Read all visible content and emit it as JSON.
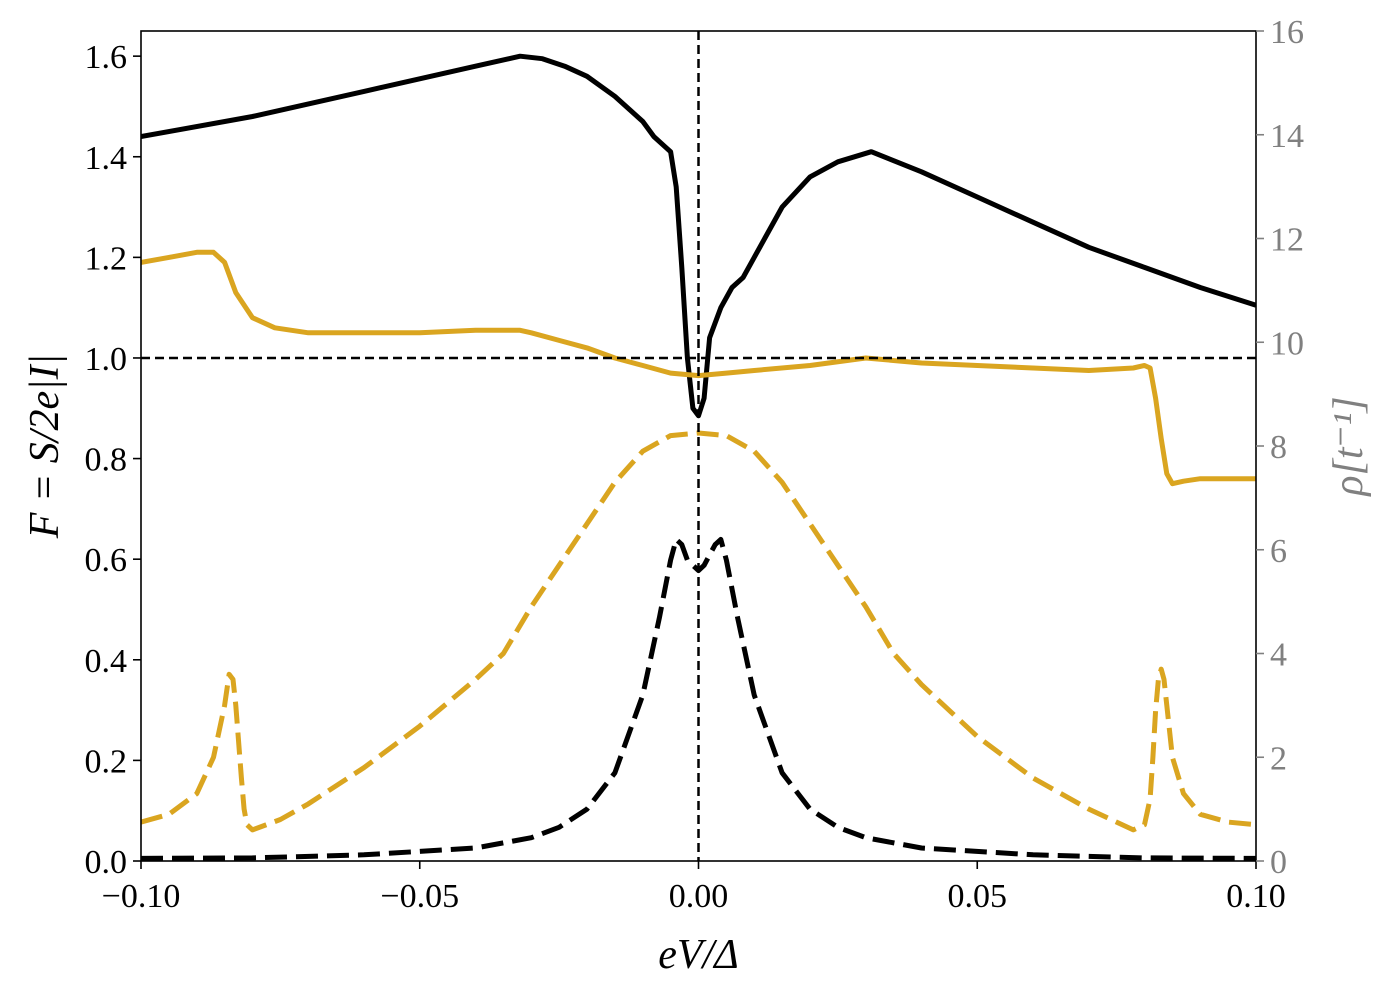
{
  "chart_data": {
    "type": "line",
    "xlabel": "eV/Δ",
    "ylabel_left": "F = S/2e|I|",
    "ylabel_right": "ρ[t⁻¹]",
    "xlim": [
      -0.1,
      0.1
    ],
    "ylim_left": [
      0.0,
      1.65
    ],
    "ylim_right": [
      0,
      16
    ],
    "xticks": [
      -0.1,
      -0.05,
      0.0,
      0.05,
      0.1
    ],
    "xtick_labels": [
      "−0.10",
      "−0.05",
      "0.00",
      "0.05",
      "0.10"
    ],
    "yticks_left": [
      0.0,
      0.2,
      0.4,
      0.6,
      0.8,
      1.0,
      1.2,
      1.4,
      1.6
    ],
    "ytick_labels_left": [
      "0.0",
      "0.2",
      "0.4",
      "0.6",
      "0.8",
      "1.0",
      "1.2",
      "1.4",
      "1.6"
    ],
    "yticks_right": [
      0,
      2,
      4,
      6,
      8,
      10,
      12,
      14,
      16
    ],
    "ytick_labels_right": [
      "0",
      "2",
      "4",
      "6",
      "8",
      "10",
      "12",
      "14",
      "16"
    ],
    "grid": false,
    "reference_lines": [
      {
        "orientation": "horizontal",
        "axis": "left",
        "value": 1.0,
        "style": "dashed",
        "color": "#000000"
      },
      {
        "orientation": "vertical",
        "value": 0.0,
        "style": "dashed",
        "color": "#000000"
      }
    ],
    "colors": {
      "black": "#000000",
      "gold": "#DAA520",
      "right_axis": "#808080"
    },
    "series": [
      {
        "axis": "left",
        "color": "#000000",
        "style": "solid",
        "x": [
          -0.1,
          -0.08,
          -0.06,
          -0.04,
          -0.032,
          -0.028,
          -0.024,
          -0.02,
          -0.015,
          -0.01,
          -0.008,
          -0.006,
          -0.005,
          -0.004,
          -0.003,
          -0.002,
          -0.001,
          0.0,
          0.001,
          0.002,
          0.003,
          0.004,
          0.006,
          0.008,
          0.01,
          0.015,
          0.02,
          0.025,
          0.031,
          0.04,
          0.05,
          0.06,
          0.07,
          0.08,
          0.09,
          0.1
        ],
        "y": [
          1.44,
          1.48,
          1.53,
          1.58,
          1.6,
          1.595,
          1.58,
          1.56,
          1.52,
          1.47,
          1.44,
          1.42,
          1.41,
          1.34,
          1.18,
          1.0,
          0.9,
          0.885,
          0.92,
          1.04,
          1.07,
          1.1,
          1.14,
          1.16,
          1.2,
          1.3,
          1.36,
          1.39,
          1.41,
          1.37,
          1.32,
          1.27,
          1.22,
          1.18,
          1.14,
          1.105
        ]
      },
      {
        "axis": "left",
        "color": "#DAA520",
        "style": "solid",
        "x": [
          -0.1,
          -0.095,
          -0.09,
          -0.087,
          -0.085,
          -0.083,
          -0.08,
          -0.076,
          -0.07,
          -0.06,
          -0.05,
          -0.04,
          -0.032,
          -0.03,
          -0.025,
          -0.02,
          -0.015,
          -0.01,
          -0.005,
          0.0,
          0.005,
          0.01,
          0.02,
          0.03,
          0.04,
          0.05,
          0.06,
          0.07,
          0.078,
          0.08,
          0.081,
          0.082,
          0.083,
          0.084,
          0.085,
          0.087,
          0.09,
          0.1
        ],
        "y": [
          1.19,
          1.2,
          1.21,
          1.21,
          1.19,
          1.13,
          1.08,
          1.06,
          1.05,
          1.05,
          1.05,
          1.055,
          1.055,
          1.05,
          1.035,
          1.02,
          1.0,
          0.985,
          0.97,
          0.965,
          0.97,
          0.975,
          0.985,
          1.0,
          0.99,
          0.985,
          0.98,
          0.975,
          0.98,
          0.985,
          0.98,
          0.92,
          0.84,
          0.77,
          0.75,
          0.755,
          0.76,
          0.76
        ]
      },
      {
        "axis": "right",
        "color": "#DAA520",
        "style": "dashed",
        "x": [
          -0.1,
          -0.095,
          -0.09,
          -0.087,
          -0.085,
          -0.0842,
          -0.0835,
          -0.083,
          -0.0825,
          -0.082,
          -0.0815,
          -0.081,
          -0.08,
          -0.075,
          -0.07,
          -0.06,
          -0.05,
          -0.04,
          -0.035,
          -0.03,
          -0.025,
          -0.02,
          -0.015,
          -0.01,
          -0.005,
          0.0,
          0.005,
          0.01,
          0.015,
          0.02,
          0.025,
          0.03,
          0.035,
          0.04,
          0.05,
          0.06,
          0.07,
          0.078,
          0.08,
          0.081,
          0.0815,
          0.082,
          0.0825,
          0.083,
          0.0835,
          0.084,
          0.085,
          0.087,
          0.09,
          0.095,
          0.1
        ],
        "y": [
          0.75,
          0.9,
          1.3,
          2.0,
          3.0,
          3.6,
          3.5,
          3.0,
          2.3,
          1.6,
          1.0,
          0.7,
          0.6,
          0.8,
          1.1,
          1.8,
          2.6,
          3.5,
          4.0,
          4.9,
          5.7,
          6.5,
          7.3,
          7.9,
          8.2,
          8.25,
          8.2,
          7.9,
          7.3,
          6.5,
          5.7,
          4.9,
          4.0,
          3.4,
          2.4,
          1.6,
          1.0,
          0.6,
          0.7,
          1.2,
          2.0,
          2.9,
          3.5,
          3.7,
          3.5,
          3.0,
          2.0,
          1.3,
          0.9,
          0.75,
          0.7
        ]
      },
      {
        "axis": "right",
        "color": "#000000",
        "style": "dashed",
        "x": [
          -0.1,
          -0.08,
          -0.06,
          -0.04,
          -0.03,
          -0.025,
          -0.02,
          -0.015,
          -0.01,
          -0.007,
          -0.005,
          -0.004,
          -0.003,
          -0.002,
          -0.001,
          0.0,
          0.001,
          0.002,
          0.003,
          0.004,
          0.005,
          0.007,
          0.01,
          0.015,
          0.02,
          0.025,
          0.03,
          0.04,
          0.06,
          0.08,
          0.1
        ],
        "y": [
          0.05,
          0.06,
          0.12,
          0.25,
          0.45,
          0.65,
          1.0,
          1.7,
          3.2,
          4.7,
          5.8,
          6.2,
          6.1,
          5.8,
          5.7,
          5.6,
          5.7,
          5.9,
          6.1,
          6.2,
          5.8,
          4.7,
          3.2,
          1.7,
          1.0,
          0.65,
          0.45,
          0.25,
          0.12,
          0.06,
          0.05
        ]
      }
    ]
  }
}
